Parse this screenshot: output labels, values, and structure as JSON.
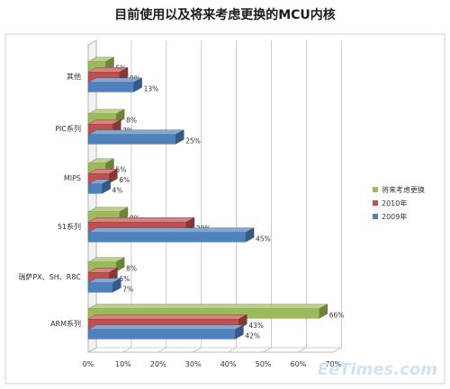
{
  "chart_data": {
    "type": "bar",
    "orientation": "horizontal",
    "title": "目前使用以及将来考虑更换的MCU内核",
    "categories": [
      "其他",
      "PIC系列",
      "MIPS",
      "51系列",
      "瑞萨PX、SH、R8C",
      "ARM系列"
    ],
    "series": [
      {
        "name": "将来考虑更换",
        "color": "#9bbb59",
        "values": [
          5,
          8,
          5,
          9,
          8,
          66
        ]
      },
      {
        "name": "2010年",
        "color": "#c0504d",
        "values": [
          9,
          7,
          6,
          28,
          6,
          43
        ]
      },
      {
        "name": "2009年",
        "color": "#4f81bd",
        "values": [
          13,
          25,
          4,
          45,
          7,
          42
        ]
      }
    ],
    "xlim": [
      0,
      70
    ],
    "xticks": [
      "0%",
      "10%",
      "20%",
      "30%",
      "40%",
      "50%",
      "60%",
      "70%"
    ],
    "value_suffix": "%",
    "grid": true,
    "legend_position": "right"
  },
  "watermark": "EeTimes.com"
}
